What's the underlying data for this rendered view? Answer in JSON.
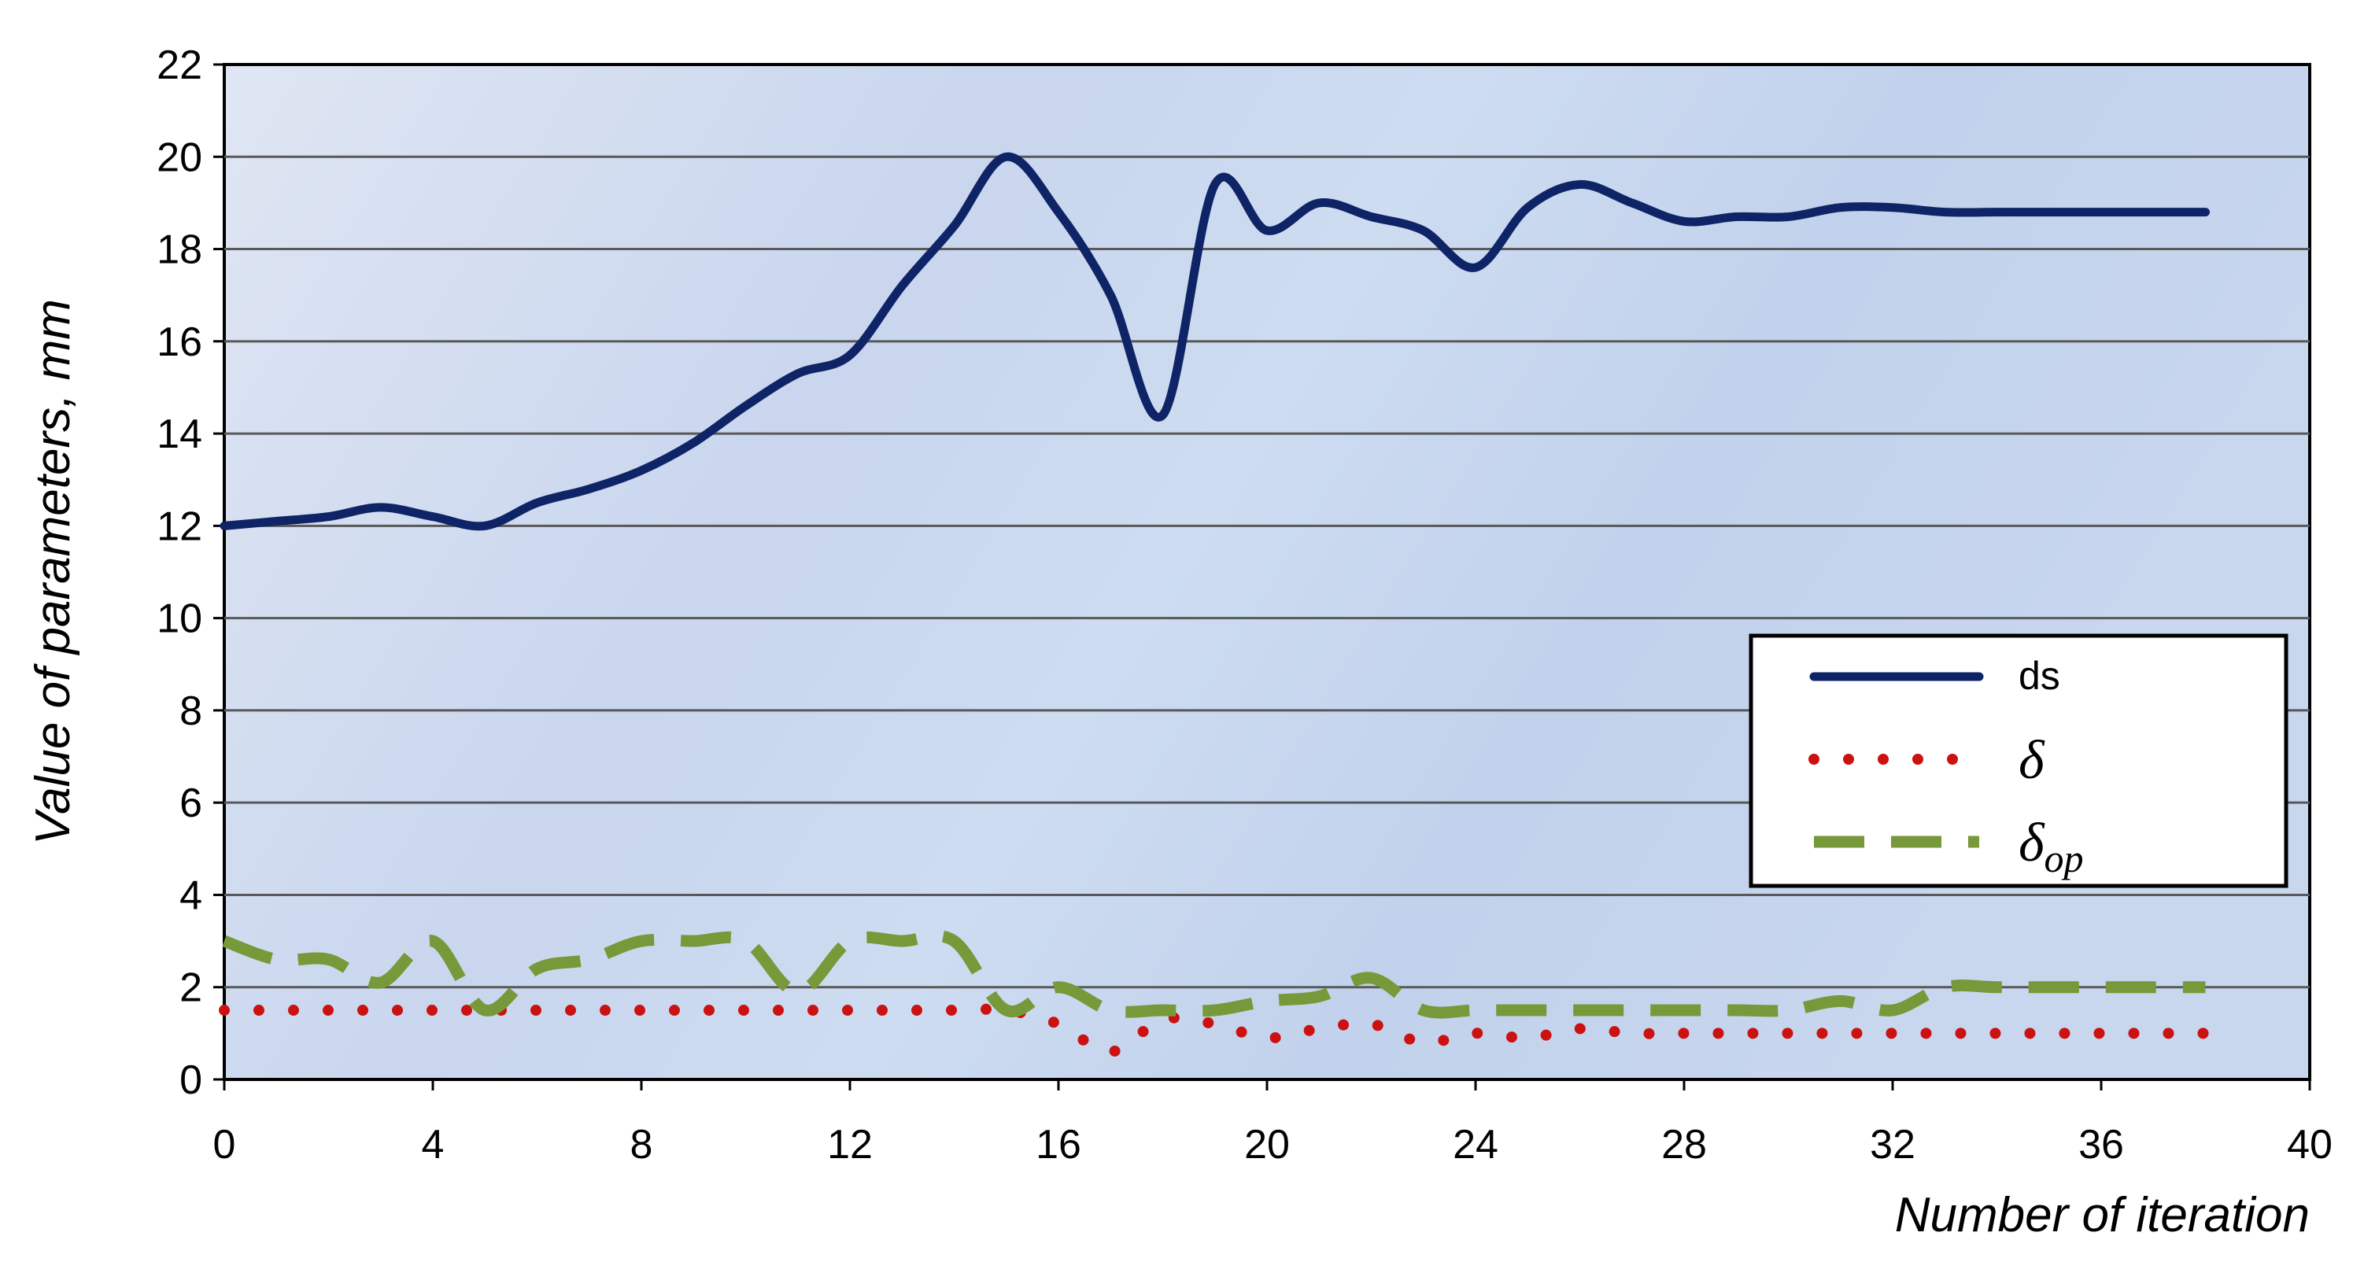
{
  "chart_data": {
    "type": "line",
    "xlabel": "Number of iteration",
    "ylabel": "Value of parameters, mm",
    "xlim": [
      0,
      40
    ],
    "ylim": [
      0,
      22
    ],
    "xticks": [
      "0",
      "4",
      "8",
      "12",
      "16",
      "20",
      "24",
      "28",
      "32",
      "36",
      "40"
    ],
    "yticks": [
      "0",
      "2",
      "4",
      "6",
      "8",
      "10",
      "12",
      "14",
      "16",
      "18",
      "20",
      "22"
    ],
    "grid": "horizontal",
    "legend_position": "right",
    "series": [
      {
        "name": "ds",
        "style": "solid",
        "color": "#0f2466",
        "x": [
          0,
          1,
          2,
          3,
          4,
          5,
          6,
          7,
          8,
          9,
          10,
          11,
          12,
          13,
          14,
          15,
          16,
          17,
          18,
          19,
          20,
          21,
          22,
          23,
          24,
          25,
          26,
          27,
          28,
          29,
          30,
          31,
          32,
          33,
          34,
          35,
          36,
          37,
          38
        ],
        "y": [
          12.0,
          12.1,
          12.2,
          12.4,
          12.2,
          12.0,
          12.5,
          12.8,
          13.2,
          13.8,
          14.6,
          15.3,
          15.7,
          17.2,
          18.5,
          20.0,
          18.8,
          17.0,
          14.4,
          19.4,
          18.4,
          19.0,
          18.7,
          18.4,
          17.6,
          18.9,
          19.4,
          19.0,
          18.6,
          18.7,
          18.7,
          18.9,
          18.9,
          18.8,
          18.8,
          18.8,
          18.8,
          18.8,
          18.8
        ]
      },
      {
        "name": "δ",
        "style": "dotted",
        "color": "#cc1111",
        "x": [
          0,
          1,
          2,
          3,
          4,
          5,
          6,
          7,
          8,
          9,
          10,
          11,
          12,
          13,
          14,
          15,
          16,
          17,
          18,
          19,
          20,
          21,
          22,
          23,
          24,
          25,
          26,
          27,
          28,
          29,
          30,
          31,
          32,
          33,
          34,
          35,
          36,
          37,
          38
        ],
        "y": [
          1.5,
          1.5,
          1.5,
          1.5,
          1.5,
          1.5,
          1.5,
          1.5,
          1.5,
          1.5,
          1.5,
          1.5,
          1.5,
          1.5,
          1.5,
          1.5,
          1.2,
          0.6,
          1.3,
          1.2,
          0.9,
          1.1,
          1.2,
          0.8,
          1.0,
          0.9,
          1.1,
          1.0,
          1.0,
          1.0,
          1.0,
          1.0,
          1.0,
          1.0,
          1.0,
          1.0,
          1.0,
          1.0,
          1.0
        ]
      },
      {
        "name": "δop",
        "style": "dashed",
        "color": "#77993a",
        "x": [
          0,
          1,
          2,
          3,
          4,
          5,
          6,
          7,
          8,
          9,
          10,
          11,
          12,
          13,
          14,
          15,
          16,
          17,
          18,
          19,
          20,
          21,
          22,
          23,
          24,
          25,
          26,
          27,
          28,
          29,
          30,
          31,
          32,
          33,
          34,
          35,
          36,
          37,
          38
        ],
        "y": [
          3.0,
          2.6,
          2.6,
          2.1,
          3.0,
          1.5,
          2.4,
          2.6,
          3.0,
          3.0,
          3.0,
          1.9,
          3.0,
          3.0,
          3.0,
          1.5,
          2.0,
          1.5,
          1.5,
          1.5,
          1.7,
          1.8,
          2.2,
          1.5,
          1.5,
          1.5,
          1.5,
          1.5,
          1.5,
          1.5,
          1.5,
          1.7,
          1.5,
          2.0,
          2.0,
          2.0,
          2.0,
          2.0,
          2.0
        ]
      }
    ],
    "legend": {
      "entries": [
        {
          "label": "ds",
          "series": 0
        },
        {
          "label": "δ",
          "series": 1
        },
        {
          "label": "δ",
          "sub": "op",
          "series": 2
        }
      ]
    }
  }
}
